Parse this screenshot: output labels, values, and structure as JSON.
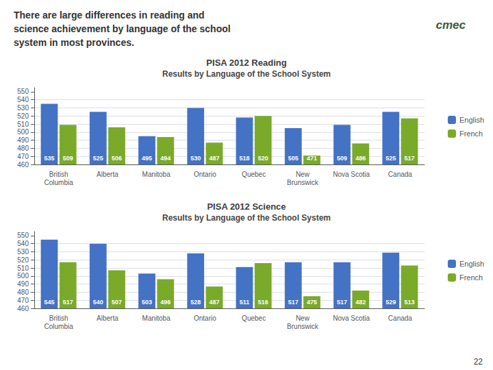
{
  "annotations": [
    "There are large differences in reading and\nscience achievement by language of the school\nsystem in most provinces.",
    "cmec",
    "22"
  ],
  "chart_data": [
    {
      "type": "bar",
      "title": "PISA 2012 Reading",
      "subtitle": "Results by Language of the School System",
      "categories": [
        "British\nColumbia",
        "Alberta",
        "Manitoba",
        "Ontario",
        "Quebec",
        "New\nBrunswick",
        "Nova Scotia",
        "Canada"
      ],
      "series": [
        {
          "name": "English",
          "color": "#4472c4",
          "values": [
            535,
            525,
            495,
            530,
            518,
            505,
            509,
            525
          ]
        },
        {
          "name": "French",
          "color": "#7aaa2a",
          "values": [
            509,
            506,
            494,
            487,
            520,
            471,
            486,
            517
          ]
        }
      ],
      "ylim": [
        460,
        555
      ],
      "yticks": [
        460,
        470,
        480,
        490,
        500,
        510,
        520,
        530,
        540,
        550
      ],
      "grid": true,
      "legend": "right",
      "data_labels": true
    },
    {
      "type": "bar",
      "title": "PISA 2012 Science",
      "subtitle": "Results by Language of the School System",
      "categories": [
        "British\nColumbia",
        "Alberta",
        "Manitoba",
        "Ontario",
        "Quebec",
        "New\nBrunswick",
        "Nova Scotia",
        "Canada"
      ],
      "series": [
        {
          "name": "English",
          "color": "#4472c4",
          "values": [
            545,
            540,
            503,
            528,
            511,
            517,
            517,
            529
          ]
        },
        {
          "name": "French",
          "color": "#7aaa2a",
          "values": [
            517,
            507,
            496,
            487,
            516,
            475,
            482,
            513
          ]
        }
      ],
      "ylim": [
        460,
        555
      ],
      "yticks": [
        460,
        470,
        480,
        490,
        500,
        510,
        520,
        530,
        540,
        550
      ],
      "grid": true,
      "legend": "right",
      "data_labels": true
    }
  ]
}
